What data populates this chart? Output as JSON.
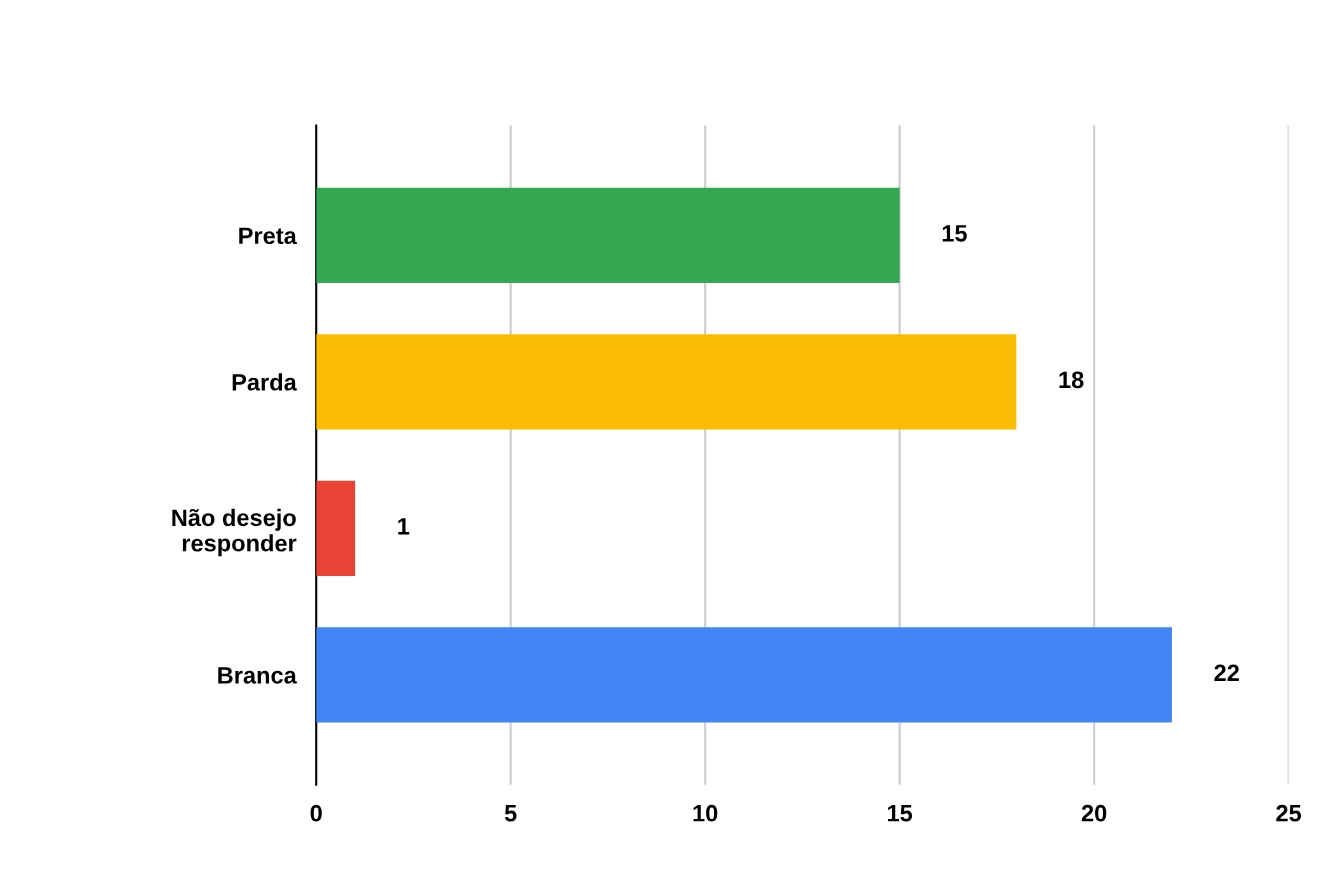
{
  "chart_data": {
    "type": "bar",
    "orientation": "horizontal",
    "categories": [
      "Preta",
      "Parda",
      "Não desejo\nresponder",
      "Branca"
    ],
    "values": [
      15,
      18,
      1,
      22
    ],
    "colors": [
      "#34a853",
      "#fbbc04",
      "#ea4335",
      "#4285f4"
    ],
    "xlim": [
      0,
      25
    ],
    "xticks": [
      0,
      5,
      10,
      15,
      20,
      25
    ],
    "grid": "x",
    "data_labels": true
  }
}
